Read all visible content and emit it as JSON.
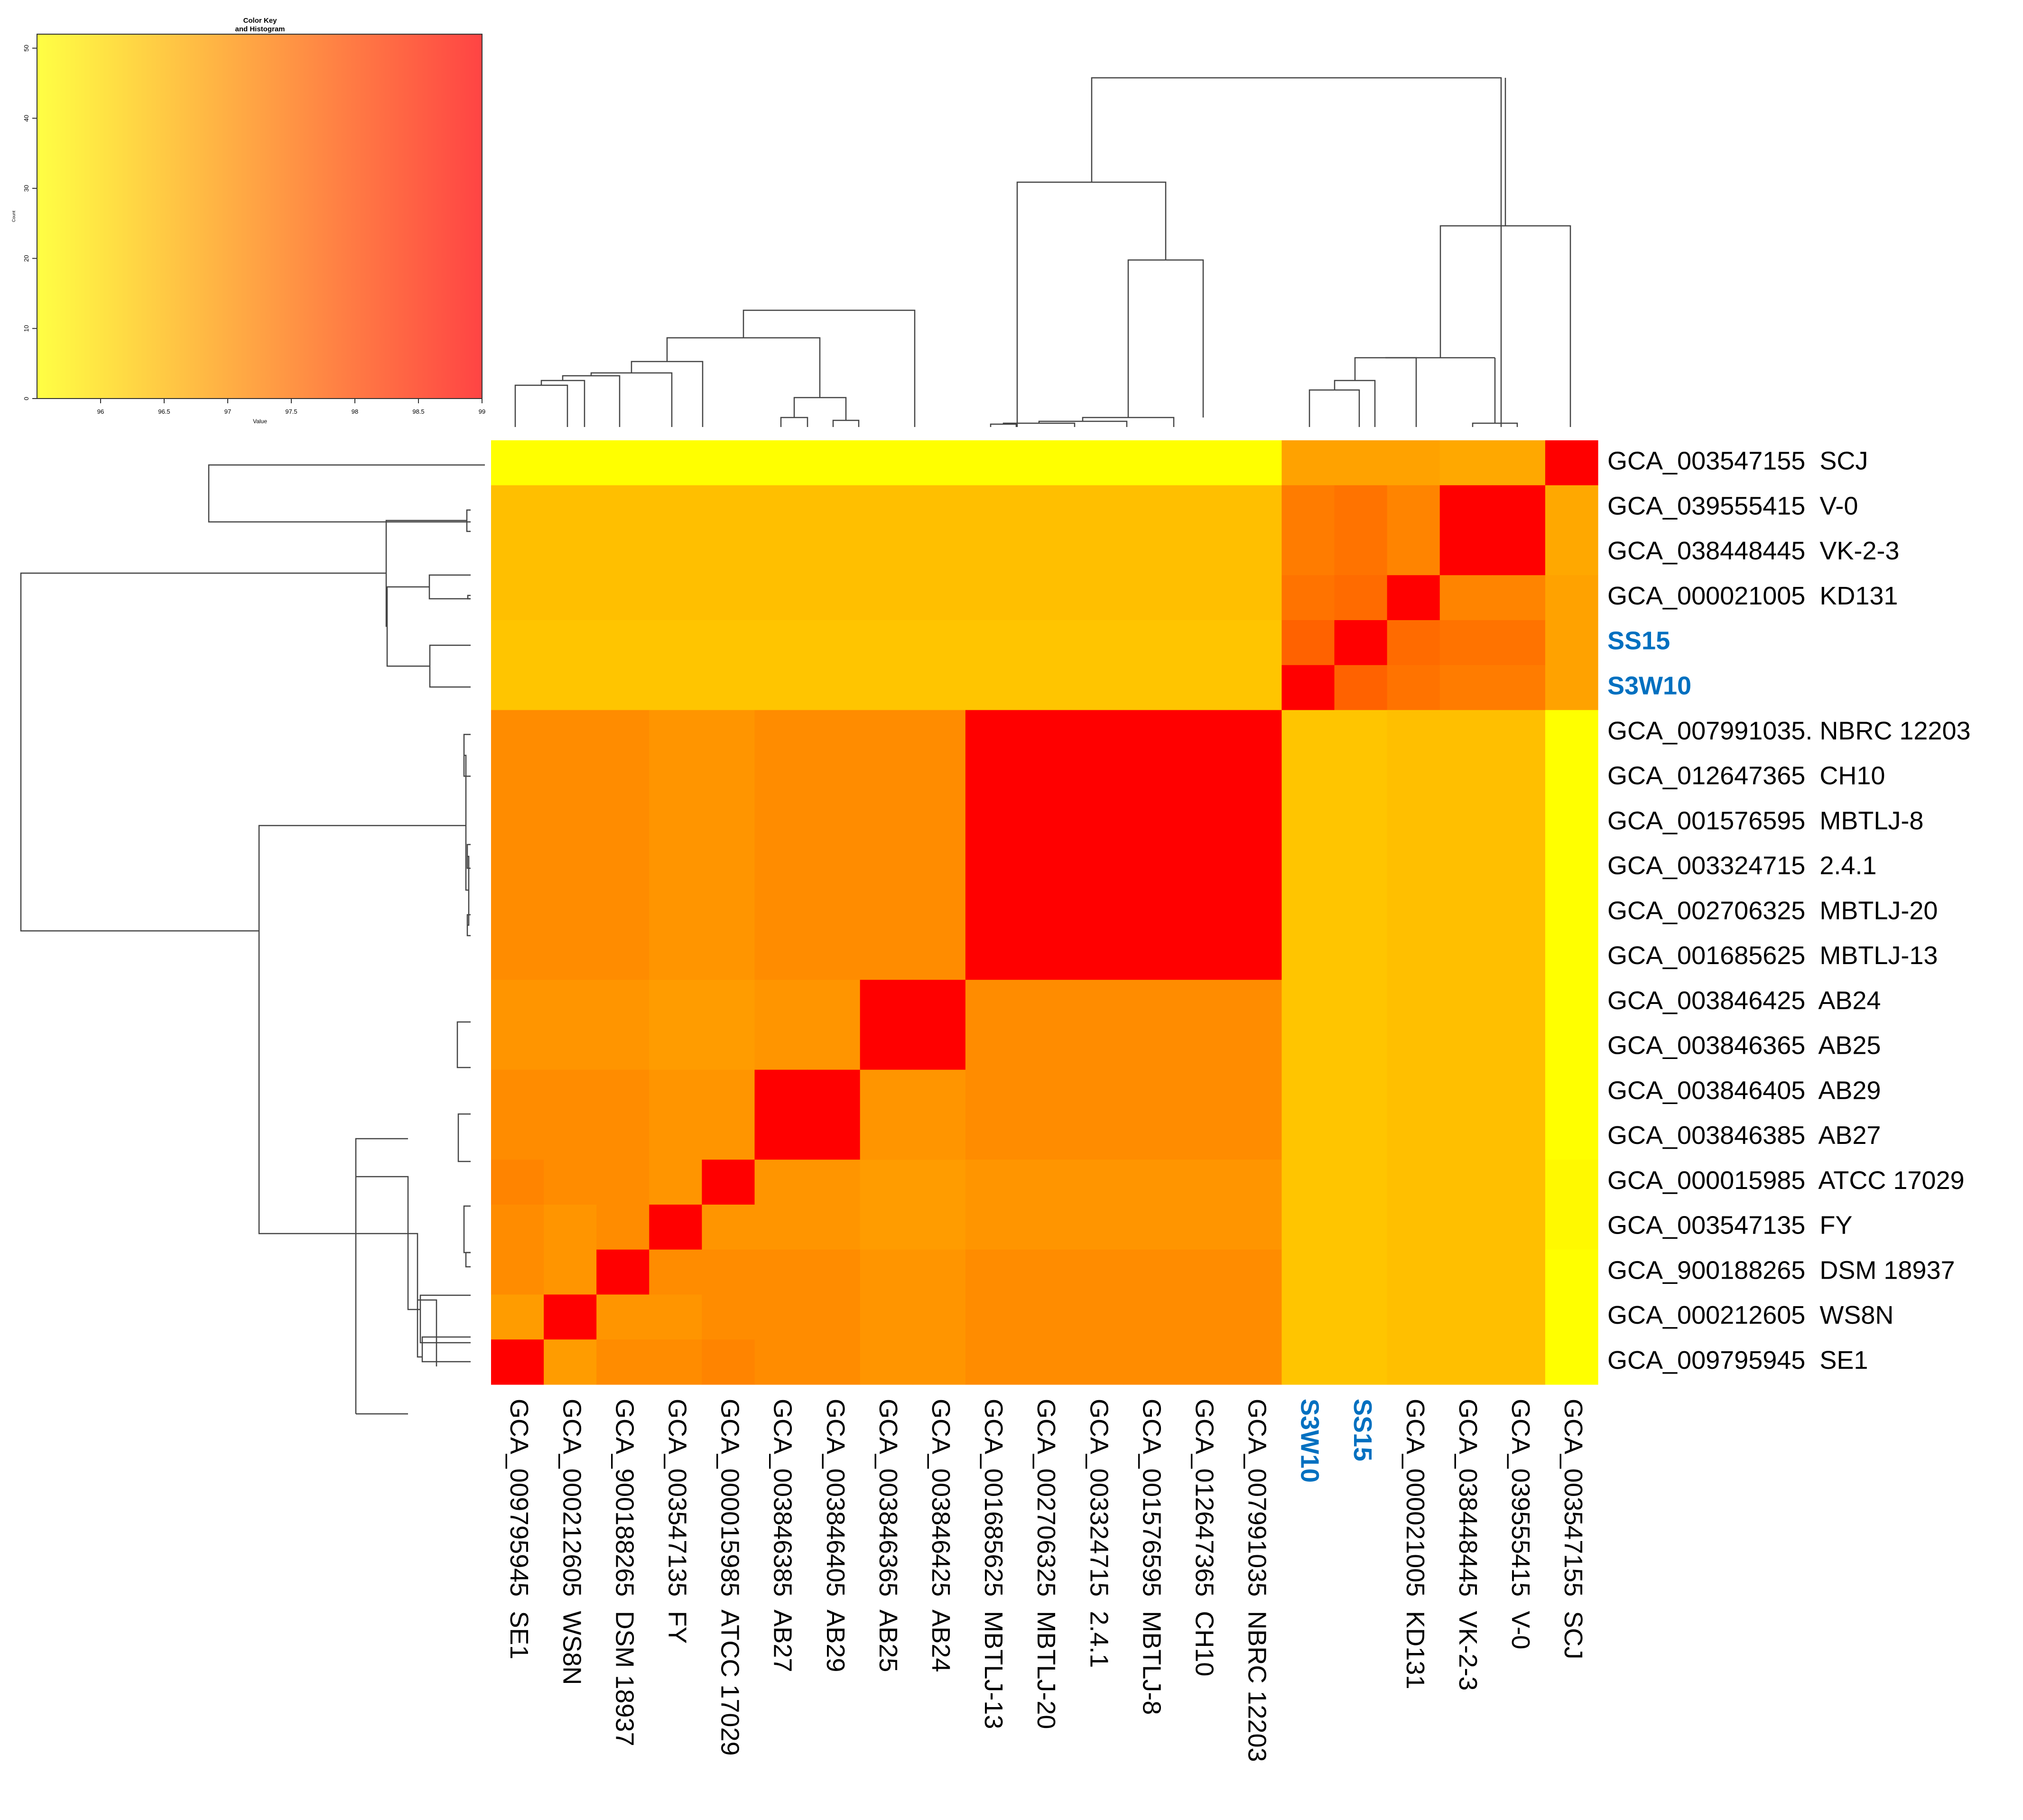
{
  "chart_data": {
    "type": "heatmap",
    "title": "",
    "color_key": {
      "title_line1": "Color Key",
      "title_line2": "and Histogram",
      "xlabel": "Value",
      "ylabel": "Count",
      "x_ticks": [
        "96",
        "96.5",
        "97",
        "97.5",
        "98",
        "98.5",
        "99"
      ],
      "y_ticks": [
        "0",
        "10",
        "20",
        "30",
        "40",
        "50"
      ],
      "range": [
        95.5,
        99
      ],
      "low_color": "#FFFF44",
      "high_color": "#FF4444"
    },
    "highlight_color": "#0070C0",
    "highlighted_labels": [
      "S3W10",
      "SS15"
    ],
    "columns": [
      "GCA_009795945  SE1",
      "GCA_000212605  WS8N",
      "GCA_900188265  DSM 18937",
      "GCA_003547135  FY",
      "GCA_000015985  ATCC 17029",
      "GCA_003846385  AB27",
      "GCA_003846405  AB29",
      "GCA_003846365  AB25",
      "GCA_003846425  AB24",
      "GCA_001685625  MBTLJ-13",
      "GCA_002706325  MBTLJ-20",
      "GCA_003324715  2.4.1",
      "GCA_001576595  MBTLJ-8",
      "GCA_012647365  CH10",
      "GCA_007991035  NBRC 12203",
      "S3W10",
      "SS15",
      "GCA_000021005  KD131",
      "GCA_038448445  VK-2-3",
      "GCA_039555415  V-0",
      "GCA_003547155  SCJ"
    ],
    "rows": [
      "GCA_003547155  SCJ",
      "GCA_039555415  V-0",
      "GCA_038448445  VK-2-3",
      "GCA_000021005  KD131",
      "SS15",
      "S3W10",
      "GCA_007991035. NBRC 12203",
      "GCA_012647365  CH10",
      "GCA_001576595  MBTLJ-8",
      "GCA_003324715  2.4.1",
      "GCA_002706325  MBTLJ-20",
      "GCA_001685625  MBTLJ-13",
      "GCA_003846425  AB24",
      "GCA_003846365  AB25",
      "GCA_003846405  AB29",
      "GCA_003846385  AB27",
      "GCA_000015985  ATCC 17029",
      "GCA_003547135  FY",
      "GCA_900188265  DSM 18937",
      "GCA_000212605  WS8N",
      "GCA_009795945  SE1"
    ],
    "values": [
      [
        96.0,
        96.0,
        96.0,
        96.0,
        96.0,
        96.0,
        96.0,
        96.0,
        96.0,
        96.0,
        96.0,
        96.0,
        96.0,
        96.0,
        96.0,
        97.6,
        97.6,
        97.6,
        97.5,
        97.5,
        99.0
      ],
      [
        97.1,
        97.1,
        97.1,
        97.1,
        97.1,
        97.1,
        97.1,
        97.1,
        97.1,
        97.1,
        97.1,
        97.1,
        97.1,
        97.1,
        97.1,
        98.1,
        98.2,
        98.0,
        99.0,
        99.0,
        97.5
      ],
      [
        97.1,
        97.1,
        97.1,
        97.1,
        97.1,
        97.1,
        97.1,
        97.1,
        97.1,
        97.1,
        97.1,
        97.1,
        97.1,
        97.1,
        97.1,
        98.1,
        98.2,
        98.0,
        99.0,
        99.0,
        97.5
      ],
      [
        97.1,
        97.1,
        97.1,
        97.1,
        97.1,
        97.1,
        97.1,
        97.1,
        97.1,
        97.1,
        97.1,
        97.1,
        97.1,
        97.1,
        97.1,
        98.2,
        98.3,
        99.0,
        98.0,
        98.0,
        97.6
      ],
      [
        97.0,
        97.0,
        97.0,
        97.0,
        97.0,
        97.0,
        97.0,
        97.0,
        97.0,
        97.0,
        97.0,
        97.0,
        97.0,
        97.0,
        97.0,
        98.4,
        99.0,
        98.3,
        98.2,
        98.2,
        97.6
      ],
      [
        97.0,
        97.0,
        97.0,
        97.0,
        97.0,
        97.0,
        97.0,
        97.0,
        97.0,
        97.0,
        97.0,
        97.0,
        97.0,
        97.0,
        97.0,
        99.0,
        98.4,
        98.2,
        98.1,
        98.1,
        97.6
      ],
      [
        97.9,
        97.9,
        97.9,
        97.8,
        97.8,
        97.9,
        97.9,
        97.9,
        97.9,
        99.0,
        99.0,
        99.0,
        99.0,
        99.0,
        99.0,
        97.0,
        97.0,
        97.1,
        97.1,
        97.1,
        96.0
      ],
      [
        97.9,
        97.9,
        97.9,
        97.8,
        97.8,
        97.9,
        97.9,
        97.9,
        97.9,
        99.0,
        99.0,
        99.0,
        99.0,
        99.0,
        99.0,
        97.0,
        97.0,
        97.1,
        97.1,
        97.1,
        96.0
      ],
      [
        97.9,
        97.9,
        97.9,
        97.8,
        97.8,
        97.9,
        97.9,
        97.9,
        97.9,
        99.0,
        99.0,
        99.0,
        99.0,
        99.0,
        99.0,
        97.0,
        97.0,
        97.1,
        97.1,
        97.1,
        96.0
      ],
      [
        97.9,
        97.9,
        97.9,
        97.8,
        97.8,
        97.9,
        97.9,
        97.9,
        97.9,
        99.0,
        99.0,
        99.0,
        99.0,
        99.0,
        99.0,
        97.0,
        97.0,
        97.1,
        97.1,
        97.1,
        96.0
      ],
      [
        97.9,
        97.9,
        97.9,
        97.8,
        97.8,
        97.9,
        97.9,
        97.9,
        97.9,
        99.0,
        99.0,
        99.0,
        99.0,
        99.0,
        99.0,
        97.0,
        97.0,
        97.1,
        97.1,
        97.1,
        96.0
      ],
      [
        97.9,
        97.9,
        97.9,
        97.8,
        97.8,
        97.9,
        97.9,
        97.9,
        97.9,
        99.0,
        99.0,
        99.0,
        99.0,
        99.0,
        99.0,
        97.0,
        97.0,
        97.1,
        97.1,
        97.1,
        96.0
      ],
      [
        97.8,
        97.8,
        97.8,
        97.7,
        97.7,
        97.8,
        97.8,
        99.0,
        99.0,
        97.9,
        97.9,
        97.9,
        97.9,
        97.9,
        97.9,
        97.0,
        97.0,
        97.1,
        97.1,
        97.1,
        96.0
      ],
      [
        97.8,
        97.8,
        97.8,
        97.7,
        97.7,
        97.8,
        97.8,
        99.0,
        99.0,
        97.9,
        97.9,
        97.9,
        97.9,
        97.9,
        97.9,
        97.0,
        97.0,
        97.1,
        97.1,
        97.1,
        96.0
      ],
      [
        97.9,
        97.9,
        97.9,
        97.8,
        97.8,
        99.0,
        99.0,
        97.8,
        97.8,
        97.9,
        97.9,
        97.9,
        97.9,
        97.9,
        97.9,
        97.0,
        97.0,
        97.1,
        97.1,
        97.1,
        96.0
      ],
      [
        97.9,
        97.9,
        97.9,
        97.8,
        97.8,
        99.0,
        99.0,
        97.8,
        97.8,
        97.9,
        97.9,
        97.9,
        97.9,
        97.9,
        97.9,
        97.0,
        97.0,
        97.1,
        97.1,
        97.1,
        96.0
      ],
      [
        98.0,
        97.9,
        97.9,
        97.8,
        99.0,
        97.8,
        97.8,
        97.7,
        97.7,
        97.8,
        97.8,
        97.8,
        97.8,
        97.8,
        97.8,
        97.0,
        97.0,
        97.1,
        97.1,
        97.1,
        96.1
      ],
      [
        97.9,
        97.8,
        97.9,
        99.0,
        97.8,
        97.8,
        97.8,
        97.7,
        97.7,
        97.8,
        97.8,
        97.8,
        97.8,
        97.8,
        97.8,
        97.0,
        97.0,
        97.1,
        97.1,
        97.1,
        96.1
      ],
      [
        97.9,
        97.8,
        99.0,
        97.9,
        97.9,
        97.9,
        97.9,
        97.8,
        97.8,
        97.9,
        97.9,
        97.9,
        97.9,
        97.9,
        97.9,
        97.0,
        97.0,
        97.1,
        97.1,
        97.1,
        96.0
      ],
      [
        97.7,
        99.0,
        97.8,
        97.8,
        97.9,
        97.9,
        97.9,
        97.8,
        97.8,
        97.9,
        97.9,
        97.9,
        97.9,
        97.9,
        97.9,
        97.0,
        97.0,
        97.1,
        97.1,
        97.1,
        96.0
      ],
      [
        99.0,
        97.7,
        97.9,
        97.9,
        98.0,
        97.9,
        97.9,
        97.8,
        97.8,
        97.9,
        97.9,
        97.9,
        97.9,
        97.9,
        97.9,
        97.0,
        97.0,
        97.1,
        97.1,
        97.1,
        96.0
      ]
    ]
  }
}
